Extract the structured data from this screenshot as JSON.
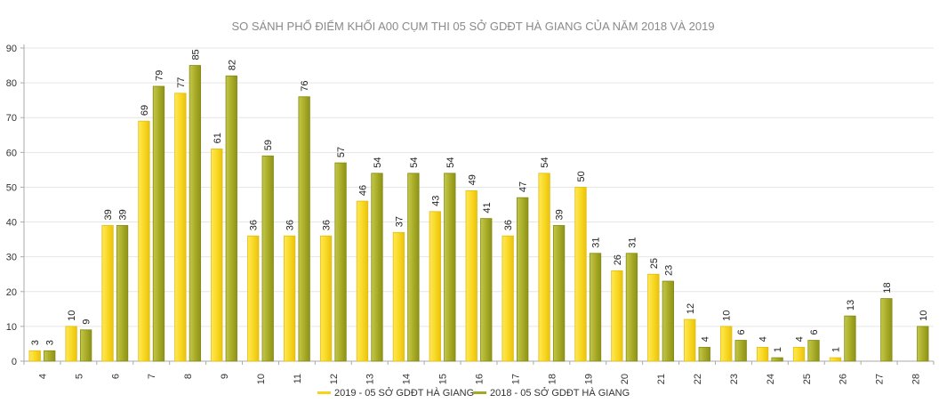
{
  "chart_data": {
    "type": "bar",
    "title": "SO SÁNH PHỔ ĐIỂM KHỐI A00 CỤM THI 05 SỞ GDĐT HÀ GIANG CỦA NĂM 2018 VÀ 2019",
    "xlabel": "",
    "ylabel": "",
    "ylim": [
      0,
      90
    ],
    "yticks": [
      0,
      10,
      20,
      30,
      40,
      50,
      60,
      70,
      80,
      90
    ],
    "grid": true,
    "legend_position": "bottom-center",
    "categories": [
      "4",
      "5",
      "6",
      "7",
      "8",
      "9",
      "10",
      "11",
      "12",
      "13",
      "14",
      "15",
      "16",
      "17",
      "18",
      "19",
      "20",
      "21",
      "22",
      "23",
      "24",
      "25",
      "26",
      "27",
      "28"
    ],
    "series": [
      {
        "name": "2019 - 05 SỞ GDĐT HÀ GIANG",
        "color": "#f7d21e",
        "values": [
          3,
          10,
          39,
          69,
          77,
          61,
          36,
          36,
          36,
          46,
          37,
          43,
          49,
          36,
          54,
          50,
          26,
          25,
          12,
          10,
          4,
          4,
          1,
          null,
          null
        ]
      },
      {
        "name": "2018 - 05 SỞ GDĐT HÀ GIANG",
        "color": "#a3a826",
        "values": [
          3,
          9,
          39,
          79,
          85,
          82,
          59,
          76,
          57,
          54,
          54,
          54,
          41,
          47,
          39,
          31,
          31,
          23,
          4,
          6,
          1,
          6,
          13,
          18,
          10
        ]
      }
    ]
  }
}
